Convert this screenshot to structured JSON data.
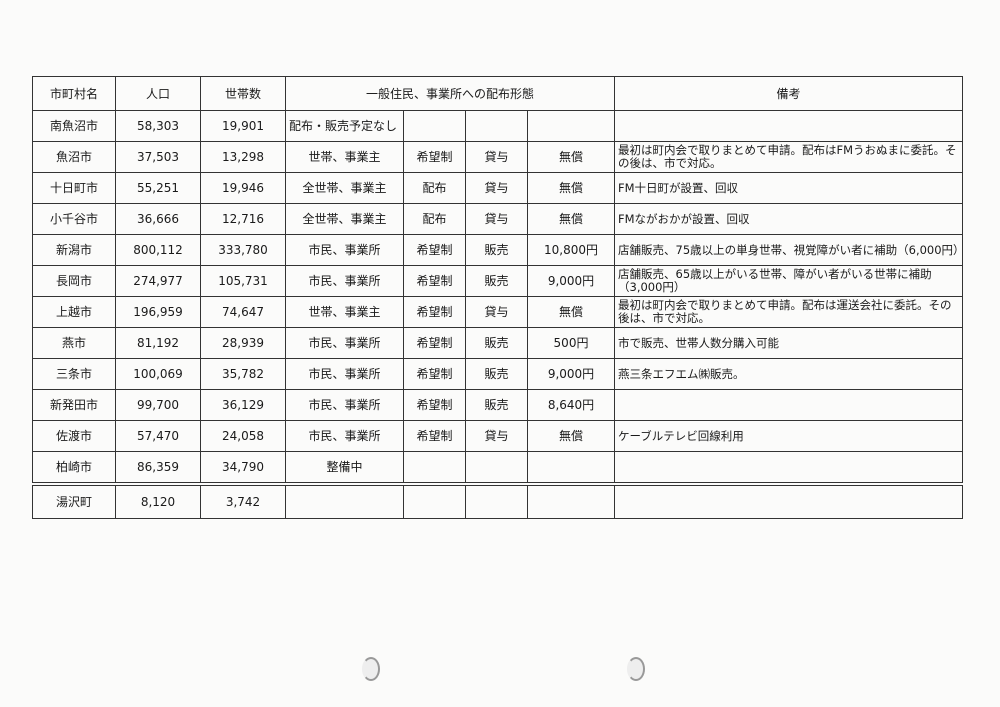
{
  "table": {
    "headers": {
      "name": "市町村名",
      "population": "人口",
      "households": "世帯数",
      "distribution": "一般住民、事業所への配布形態",
      "notes": "備考"
    },
    "rows": [
      {
        "name": "南魚沼市",
        "population": "58,303",
        "households": "19,901",
        "target": "配布・販売予定なし",
        "method": "",
        "type": "",
        "price": "",
        "notes": ""
      },
      {
        "name": "魚沼市",
        "population": "37,503",
        "households": "13,298",
        "target": "世帯、事業主",
        "method": "希望制",
        "type": "貸与",
        "price": "無償",
        "notes": "最初は町内会で取りまとめて申請。配布はFMうおぬまに委託。その後は、市で対応。"
      },
      {
        "name": "十日町市",
        "population": "55,251",
        "households": "19,946",
        "target": "全世帯、事業主",
        "method": "配布",
        "type": "貸与",
        "price": "無償",
        "notes": "FM十日町が設置、回収"
      },
      {
        "name": "小千谷市",
        "population": "36,666",
        "households": "12,716",
        "target": "全世帯、事業主",
        "method": "配布",
        "type": "貸与",
        "price": "無償",
        "notes": "FMながおかが設置、回収"
      },
      {
        "name": "新潟市",
        "population": "800,112",
        "households": "333,780",
        "target": "市民、事業所",
        "method": "希望制",
        "type": "販売",
        "price": "10,800円",
        "notes": "店舗販売、75歳以上の単身世帯、視覚障がい者に補助（6,000円）"
      },
      {
        "name": "長岡市",
        "population": "274,977",
        "households": "105,731",
        "target": "市民、事業所",
        "method": "希望制",
        "type": "販売",
        "price": "9,000円",
        "notes": "店舗販売、65歳以上がいる世帯、障がい者がいる世帯に補助（3,000円）"
      },
      {
        "name": "上越市",
        "population": "196,959",
        "households": "74,647",
        "target": "世帯、事業主",
        "method": "希望制",
        "type": "貸与",
        "price": "無償",
        "notes": "最初は町内会で取りまとめて申請。配布は運送会社に委託。その後は、市で対応。"
      },
      {
        "name": "燕市",
        "population": "81,192",
        "households": "28,939",
        "target": "市民、事業所",
        "method": "希望制",
        "type": "販売",
        "price": "500円",
        "notes": "市で販売、世帯人数分購入可能"
      },
      {
        "name": "三条市",
        "population": "100,069",
        "households": "35,782",
        "target": "市民、事業所",
        "method": "希望制",
        "type": "販売",
        "price": "9,000円",
        "notes": "燕三条エフエム㈱販売。"
      },
      {
        "name": "新発田市",
        "population": "99,700",
        "households": "36,129",
        "target": "市民、事業所",
        "method": "希望制",
        "type": "販売",
        "price": "8,640円",
        "notes": ""
      },
      {
        "name": "佐渡市",
        "population": "57,470",
        "households": "24,058",
        "target": "市民、事業所",
        "method": "希望制",
        "type": "貸与",
        "price": "無償",
        "notes": "ケーブルテレビ回線利用"
      },
      {
        "name": "柏崎市",
        "population": "86,359",
        "households": "34,790",
        "target": "整備中",
        "method": "",
        "type": "",
        "price": "",
        "notes": ""
      },
      {
        "name": "湯沢町",
        "population": "8,120",
        "households": "3,742",
        "target": "",
        "method": "",
        "type": "",
        "price": "",
        "notes": ""
      }
    ]
  }
}
